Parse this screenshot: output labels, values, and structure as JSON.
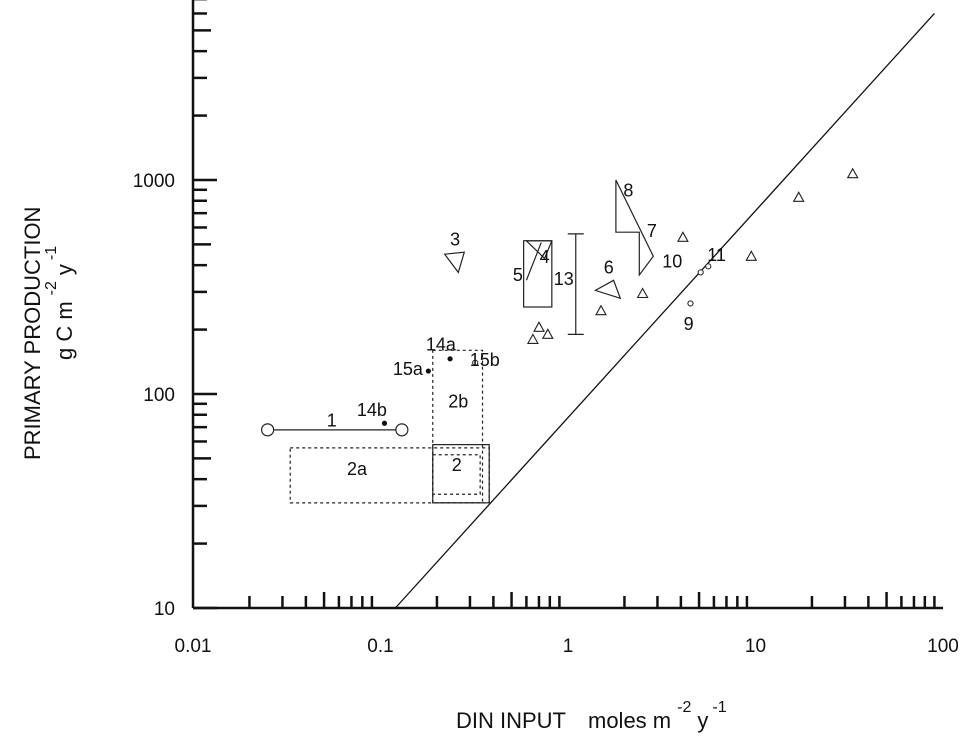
{
  "chart_data": {
    "type": "scatter",
    "x_scale": "log",
    "y_scale": "log",
    "xlim": [
      0.01,
      100
    ],
    "ylim": [
      10,
      7000
    ],
    "grid": false,
    "x_ticks": [
      "0.01",
      "0.1",
      "1",
      "10",
      "100"
    ],
    "x_tick_values": [
      0.01,
      0.1,
      1,
      10,
      100
    ],
    "y_ticks": [
      "10",
      "100",
      "1000"
    ],
    "y_tick_values": [
      10,
      100,
      1000
    ],
    "xlabel": {
      "text": "DIN INPUT",
      "units": "moles m",
      "exp1": "-2",
      "mid": "y",
      "exp2": "-1"
    },
    "ylabel": {
      "line1": "PRIMARY PRODUCTION",
      "units": "g C m",
      "exp1": "-2",
      "mid": "y",
      "exp2": "-1"
    },
    "reference_line": {
      "points": [
        [
          0.12,
          10
        ],
        [
          90,
          6000
        ]
      ]
    },
    "triangles": [
      {
        "x": 0.65,
        "y": 180
      },
      {
        "x": 0.7,
        "y": 205
      },
      {
        "x": 0.78,
        "y": 190
      },
      {
        "x": 1.5,
        "y": 245
      },
      {
        "x": 2.5,
        "y": 295
      },
      {
        "x": 4.1,
        "y": 540
      },
      {
        "x": 9.5,
        "y": 440
      },
      {
        "x": 17,
        "y": 830
      },
      {
        "x": 33,
        "y": 1070
      }
    ],
    "small_circles": [
      {
        "x": 4.5,
        "y": 265
      },
      {
        "x": 5.1,
        "y": 370
      },
      {
        "x": 5.6,
        "y": 395
      },
      {
        "x": 0.32,
        "y": 140
      }
    ],
    "filled_dots": [
      {
        "x": 0.105,
        "y": 73
      },
      {
        "x": 0.18,
        "y": 128
      },
      {
        "x": 0.235,
        "y": 146
      }
    ],
    "study1": {
      "x": [
        0.025,
        0.13
      ],
      "y": 68
    },
    "boxes": [
      {
        "id": "2a",
        "x": [
          0.033,
          0.38
        ],
        "y": [
          31,
          56
        ],
        "style": "dashed"
      },
      {
        "id": "2b",
        "x": [
          0.19,
          0.35
        ],
        "y": [
          31,
          160
        ],
        "style": "dashed"
      },
      {
        "id": "2",
        "x": [
          0.19,
          0.38
        ],
        "y": [
          31,
          58
        ],
        "style": "solid"
      },
      {
        "id": "2-inner",
        "x": [
          0.19,
          0.34
        ],
        "y": [
          34,
          52
        ],
        "style": "dashed"
      },
      {
        "id": "5",
        "x": [
          0.58,
          0.82
        ],
        "y": [
          255,
          520
        ],
        "style": "solid"
      }
    ],
    "study4_diagonal": [
      [
        0.6,
        340
      ],
      [
        0.72,
        510
      ]
    ],
    "study4_triangle": [
      [
        0.6,
        520
      ],
      [
        0.75,
        430
      ],
      [
        0.82,
        520
      ]
    ],
    "study3_triangle": [
      [
        0.22,
        450
      ],
      [
        0.28,
        460
      ],
      [
        0.26,
        370
      ]
    ],
    "study6_triangle": [
      [
        1.4,
        305
      ],
      [
        1.75,
        340
      ],
      [
        1.9,
        280
      ]
    ],
    "study7_8_shape": [
      [
        1.8,
        1000
      ],
      [
        1.8,
        570
      ],
      [
        2.4,
        570
      ],
      [
        2.4,
        360
      ],
      [
        2.85,
        440
      ]
    ],
    "study13_range": {
      "x": 1.1,
      "y": [
        190,
        560
      ]
    },
    "labels": [
      {
        "text": "1",
        "x": 0.055,
        "y": 74
      },
      {
        "text": "14b",
        "x": 0.09,
        "y": 83
      },
      {
        "text": "2a",
        "x": 0.075,
        "y": 44
      },
      {
        "text": "2",
        "x": 0.255,
        "y": 46
      },
      {
        "text": "2b",
        "x": 0.26,
        "y": 91
      },
      {
        "text": "15a",
        "x": 0.14,
        "y": 129
      },
      {
        "text": "14a",
        "x": 0.21,
        "y": 168
      },
      {
        "text": "15b",
        "x": 0.36,
        "y": 142
      },
      {
        "text": "3",
        "x": 0.25,
        "y": 520
      },
      {
        "text": "4",
        "x": 0.75,
        "y": 430
      },
      {
        "text": "5",
        "x": 0.54,
        "y": 355
      },
      {
        "text": "13",
        "x": 0.95,
        "y": 340
      },
      {
        "text": "6",
        "x": 1.65,
        "y": 385
      },
      {
        "text": "7",
        "x": 2.8,
        "y": 570
      },
      {
        "text": "8",
        "x": 2.1,
        "y": 880
      },
      {
        "text": "10",
        "x": 3.6,
        "y": 410
      },
      {
        "text": "11",
        "x": 6.2,
        "y": 440
      },
      {
        "text": "9",
        "x": 4.4,
        "y": 210
      }
    ]
  }
}
